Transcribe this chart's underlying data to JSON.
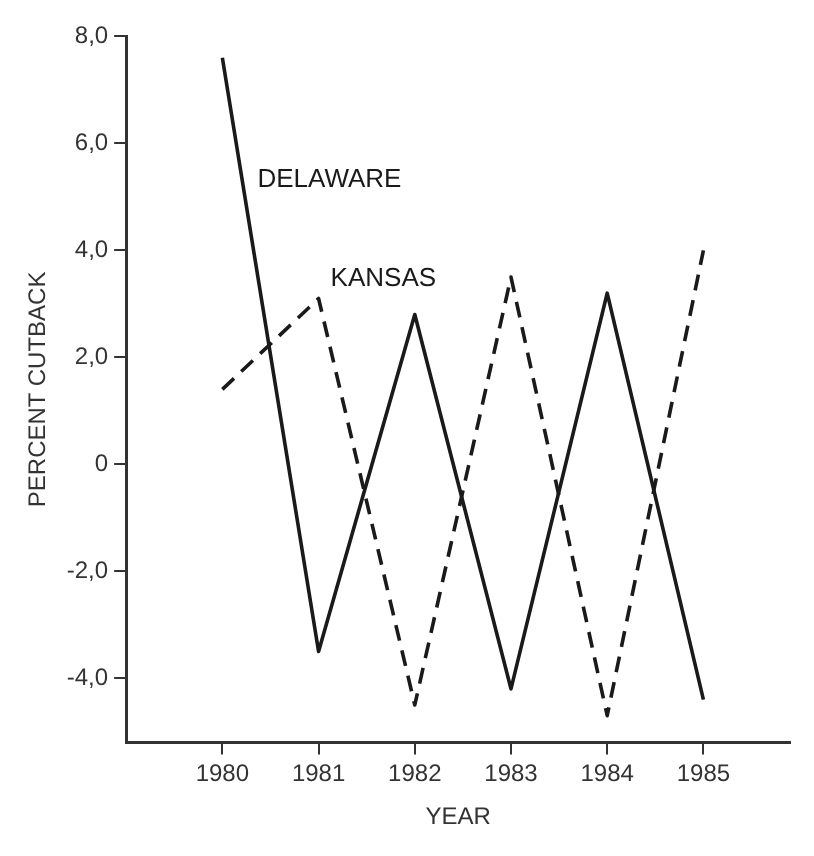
{
  "chart_data": {
    "type": "line",
    "xlabel": "YEAR",
    "ylabel": "PERCENT CUTBACK",
    "x": [
      1980,
      1981,
      1982,
      1983,
      1984,
      1985
    ],
    "series": [
      {
        "name": "DELAWARE",
        "color": "#1a1a1a",
        "line_style": "solid",
        "values": [
          7.6,
          -3.5,
          2.8,
          -4.2,
          3.2,
          -4.4
        ]
      },
      {
        "name": "KANSAS",
        "color": "#1a1a1a",
        "line_style": "dashed",
        "values": [
          1.4,
          3.1,
          -4.5,
          3.5,
          -4.7,
          4.0
        ]
      }
    ],
    "xlim": [
      1979,
      1985.9
    ],
    "xticks": [
      1980,
      1981,
      1982,
      1983,
      1984,
      1985
    ],
    "ylim": [
      -5.2,
      8
    ],
    "yticks": [
      {
        "value": 8,
        "label": "8,0"
      },
      {
        "value": 6,
        "label": "6,0"
      },
      {
        "value": 4,
        "label": "4,0"
      },
      {
        "value": 2,
        "label": "2,0"
      },
      0,
      {
        "value": -2,
        "label": "-2,0"
      },
      {
        "value": -4,
        "label": "-4,0"
      }
    ],
    "grid": false,
    "legend": false,
    "marker": "none"
  }
}
